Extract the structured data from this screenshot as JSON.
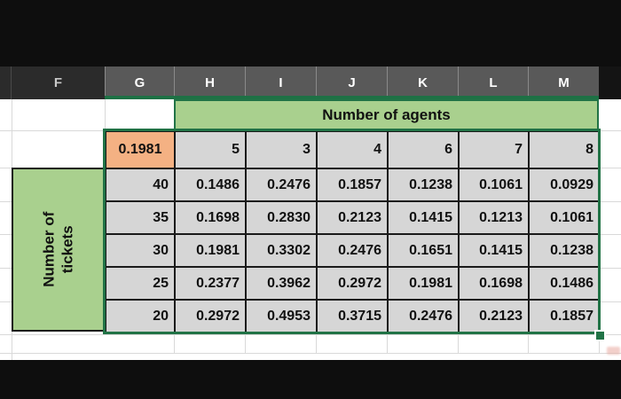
{
  "spreadsheet": {
    "column_headers": [
      "F",
      "G",
      "H",
      "I",
      "J",
      "K",
      "L",
      "M"
    ],
    "selected_columns": [
      "G",
      "H",
      "I",
      "J",
      "K",
      "L",
      "M"
    ],
    "agents_header": {
      "label": "Number of agents"
    },
    "tickets_header": {
      "label_line1": "Number of",
      "label_line2": "tickets"
    },
    "formula_cell": {
      "value": "0.1981"
    },
    "agent_counts": [
      "5",
      "3",
      "4",
      "6",
      "7",
      "8"
    ],
    "ticket_counts": [
      "40",
      "35",
      "30",
      "25",
      "20"
    ],
    "data_rows": [
      [
        "0.1486",
        "0.2476",
        "0.1857",
        "0.1238",
        "0.1061",
        "0.0929"
      ],
      [
        "0.1698",
        "0.2830",
        "0.2123",
        "0.1415",
        "0.1213",
        "0.1061"
      ],
      [
        "0.1981",
        "0.3302",
        "0.2476",
        "0.1651",
        "0.1415",
        "0.1238"
      ],
      [
        "0.2377",
        "0.3962",
        "0.2972",
        "0.1981",
        "0.1698",
        "0.1486"
      ],
      [
        "0.2972",
        "0.4953",
        "0.3715",
        "0.2476",
        "0.2123",
        "0.1857"
      ]
    ],
    "colors": {
      "green_fill": "#a9d08e",
      "orange_fill": "#f4b183",
      "gray_fill": "#d6d6d6",
      "selection_green": "#217346",
      "header_selected_gray": "#595959",
      "header_dark": "#2b2b2b"
    }
  }
}
